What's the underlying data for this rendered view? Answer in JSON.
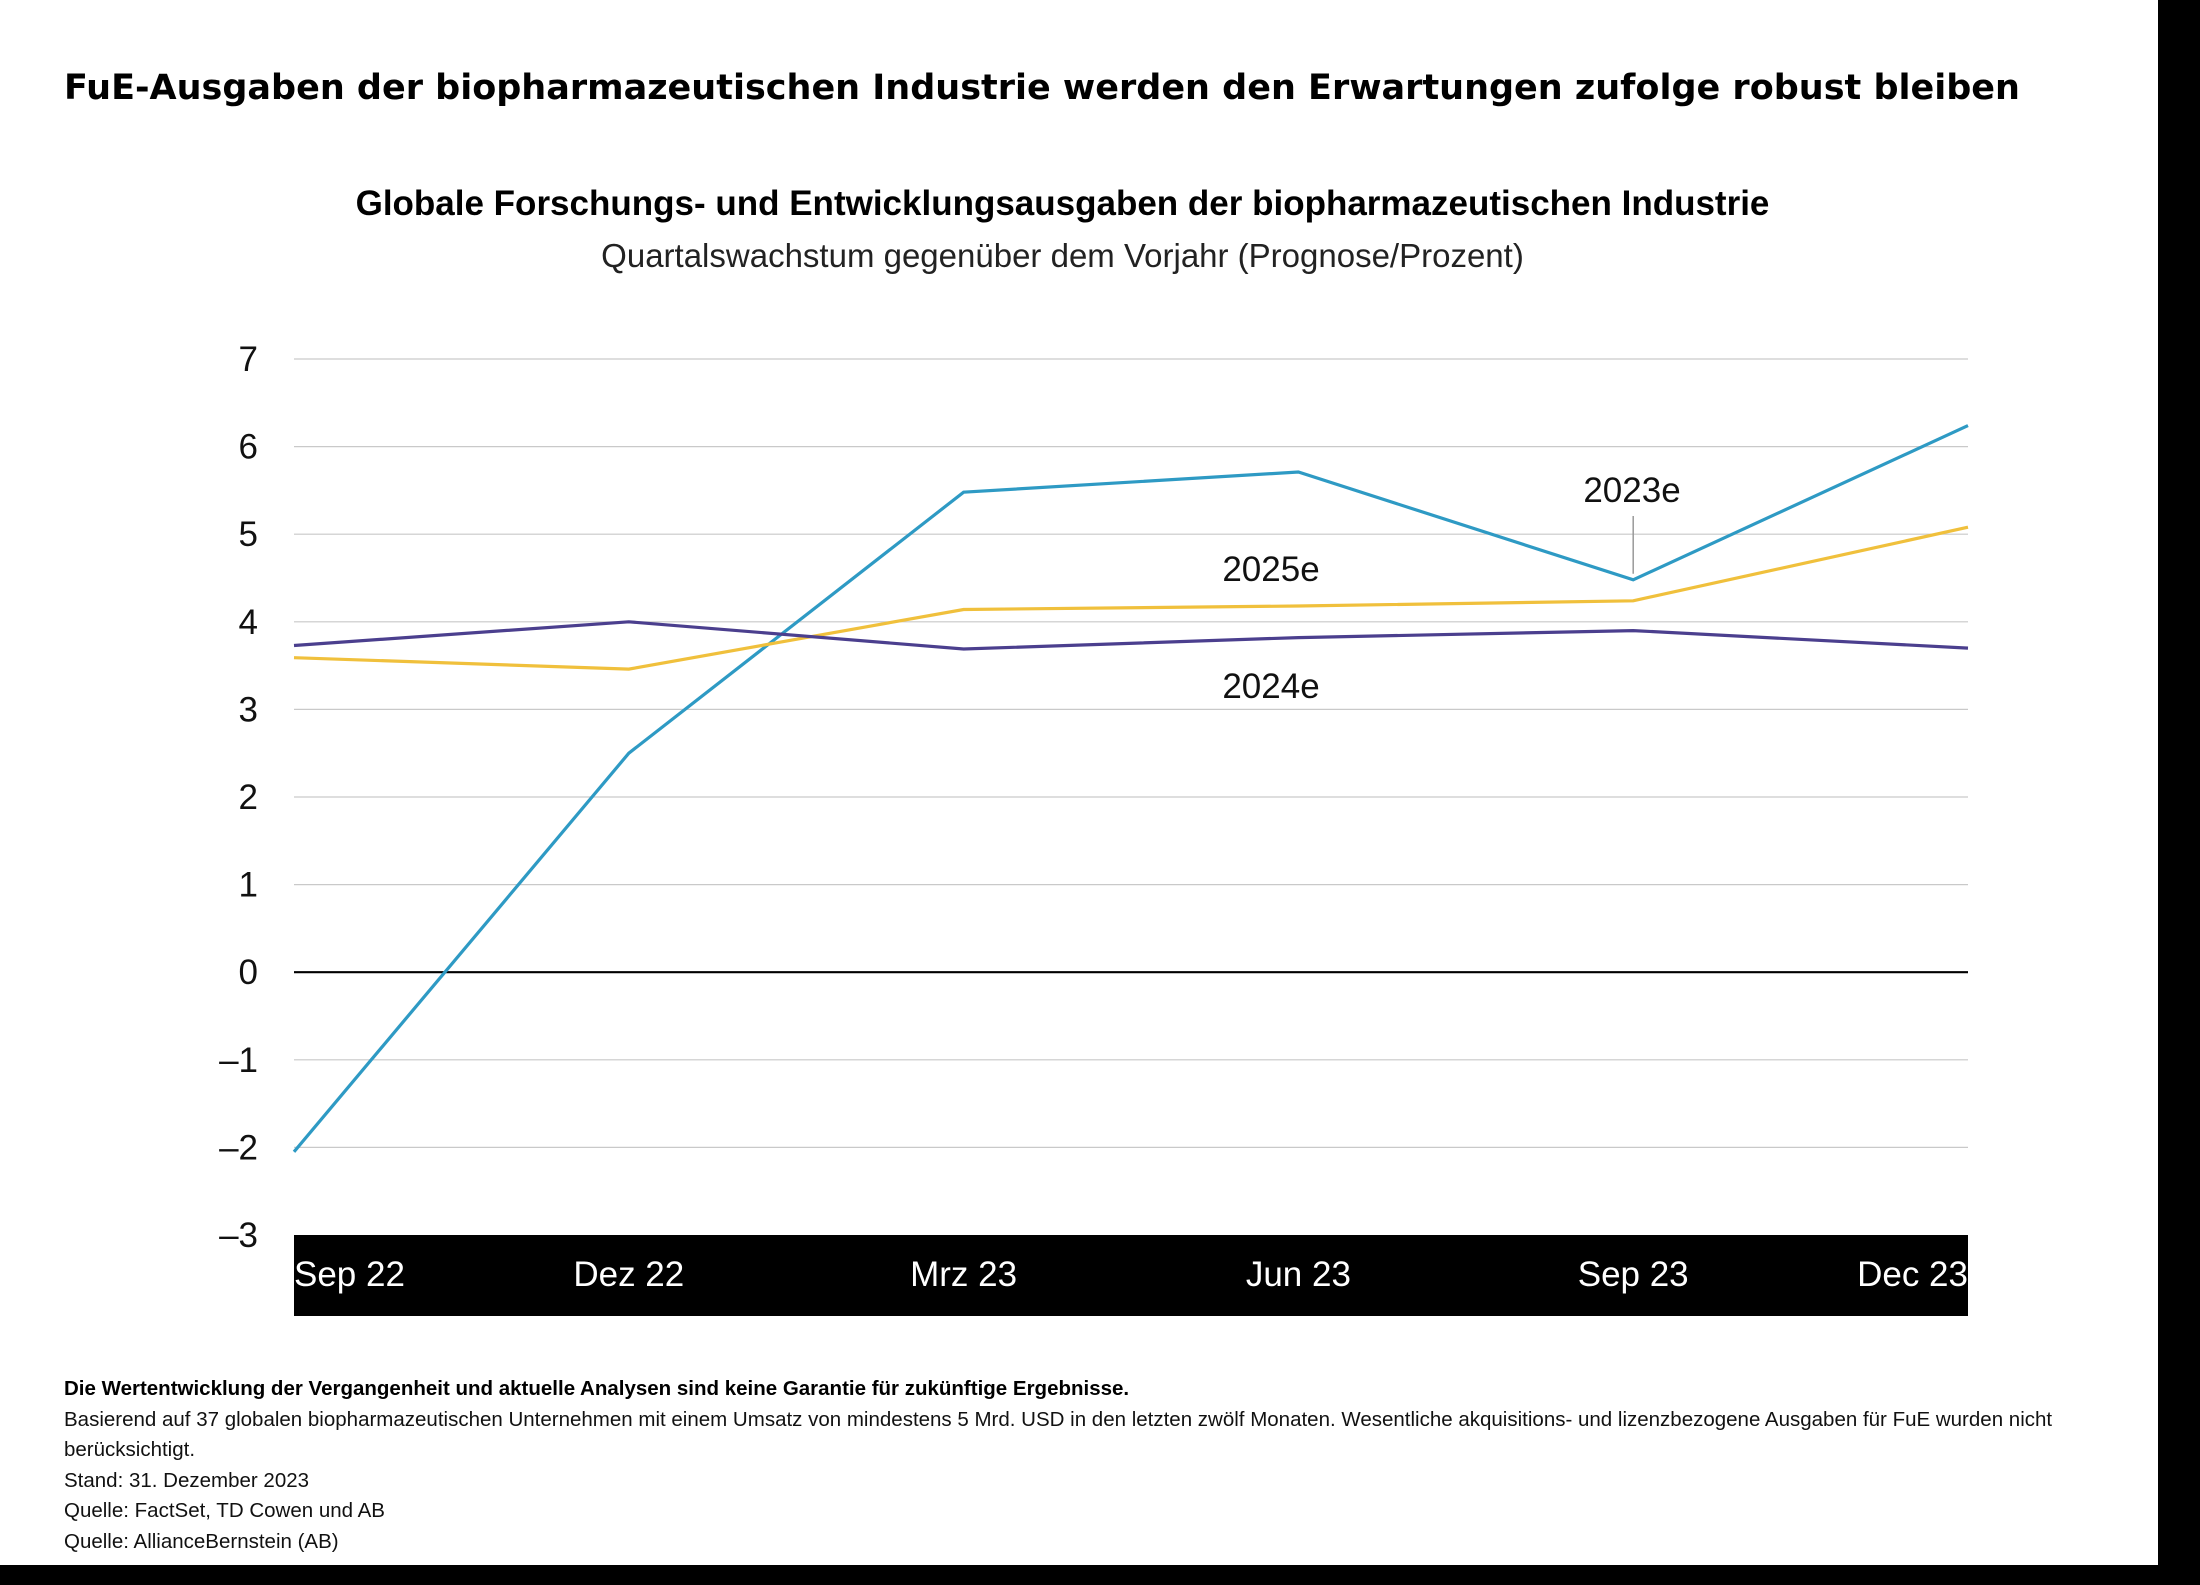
{
  "headline": "FuE-Ausgaben der biopharmazeutischen Industrie werden den Erwartungen zufolge robust bleiben",
  "chart_data": {
    "type": "line",
    "title": "Globale Forschungs- und Entwicklungsausgaben der biopharmazeutischen Industrie",
    "subtitle": "Quartalswachstum gegenüber dem Vorjahr (Prognose/Prozent)",
    "categories": [
      "Sep 22",
      "Dez 22",
      "Mrz 23",
      "Jun 23",
      "Sep 23",
      "Dec 23"
    ],
    "ylim": [
      -3,
      7
    ],
    "yticks": [
      7,
      6,
      5,
      4,
      3,
      2,
      1,
      0,
      -1,
      -2,
      -3
    ],
    "ytick_labels": [
      "7",
      "6",
      "5",
      "4",
      "3",
      "2",
      "1",
      "0",
      "–1",
      "–2",
      "–3"
    ],
    "grid": true,
    "series": [
      {
        "name": "2023e",
        "color": "#2e9ac4",
        "values": [
          -2.05,
          2.5,
          5.48,
          5.71,
          4.48,
          6.24
        ],
        "label_near_index": 4
      },
      {
        "name": "2025e",
        "color": "#f0c03c",
        "values": [
          3.59,
          3.46,
          4.14,
          4.18,
          4.24,
          5.08
        ],
        "label_near_index": 3
      },
      {
        "name": "2024e",
        "color": "#4b3f8e",
        "values": [
          3.73,
          4.0,
          3.69,
          3.82,
          3.9,
          3.7
        ],
        "label_near_index": 3
      }
    ]
  },
  "footnotes": {
    "line1": "Die Wertentwicklung der Vergangenheit und aktuelle Analysen sind keine Garantie für zukünftige Ergebnisse.",
    "line2": "Basierend auf 37 globalen biopharmazeutischen Unternehmen mit einem Umsatz von mindestens 5 Mrd. USD in den letzten zwölf Monaten. Wesentliche akquisitions- und lizenzbezogene Ausgaben für FuE wurden nicht berücksichtigt.",
    "line3": "Stand: 31. Dezember 2023",
    "line4": "Quelle: FactSet, TD Cowen und AB",
    "line5": "Quelle: AllianceBernstein (AB)"
  }
}
